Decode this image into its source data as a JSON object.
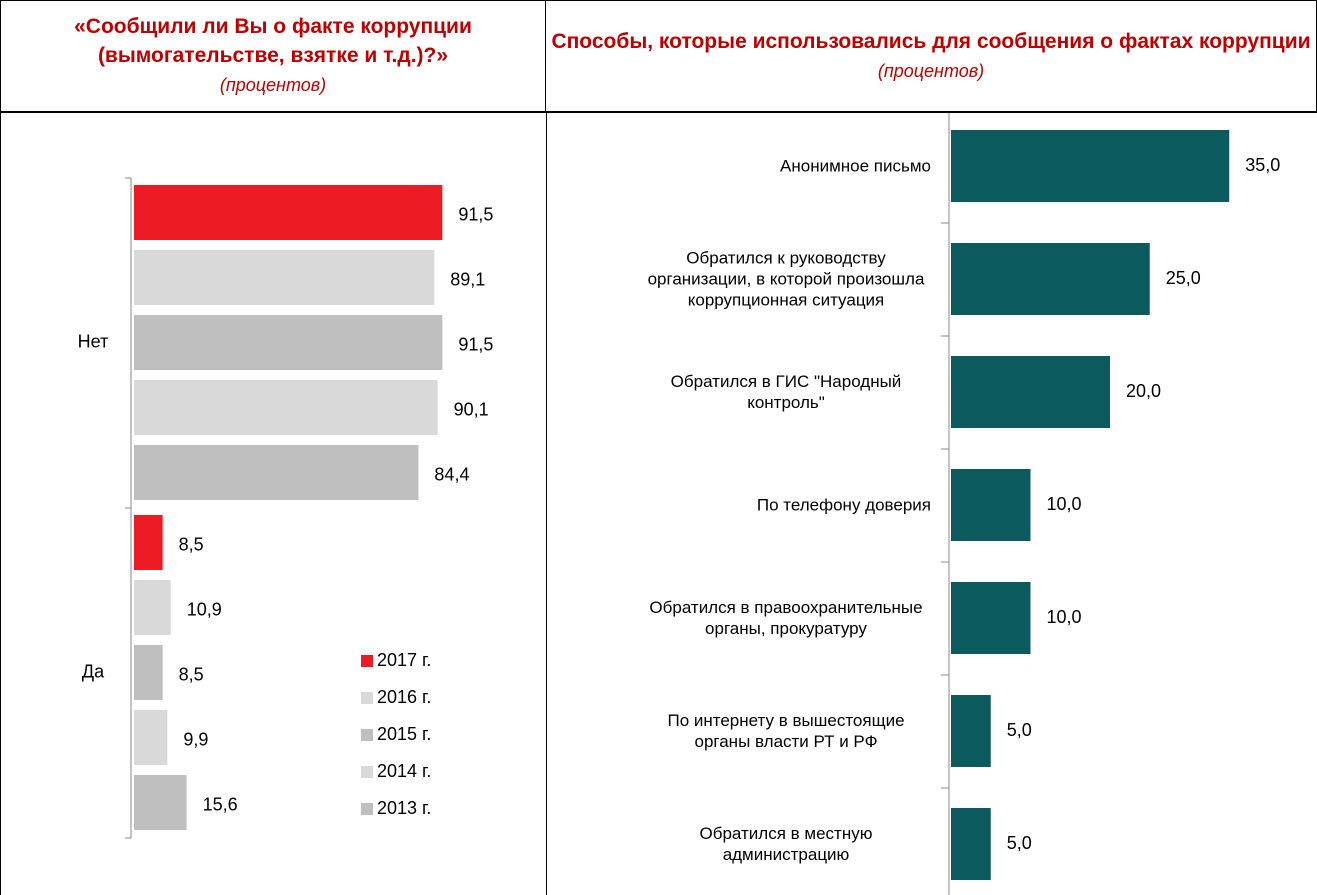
{
  "chart_data": [
    {
      "type": "hbar",
      "title": "«Сообщили ли Вы о факте коррупции (вымогательстве, взятке и т.д.)?»",
      "units": "(процентов)",
      "categories": [
        "Нет",
        "Да"
      ],
      "xlim": [
        0,
        100
      ],
      "legend": "bottom-right",
      "series": [
        {
          "name": "2017 г.",
          "color": "#ed1c24",
          "values": [
            91.5,
            8.5
          ],
          "value_labels": [
            "91,5",
            "8,5"
          ]
        },
        {
          "name": "2016 г.",
          "color": "#d9d9d9",
          "values": [
            89.1,
            10.9
          ],
          "value_labels": [
            "89,1",
            "10,9"
          ]
        },
        {
          "name": "2015 г.",
          "color": "#bfbfbf",
          "values": [
            91.5,
            8.5
          ],
          "value_labels": [
            "91,5",
            "8,5"
          ]
        },
        {
          "name": "2014 г.",
          "color": "#d9d9d9",
          "values": [
            90.1,
            9.9
          ],
          "value_labels": [
            "90,1",
            "9,9"
          ]
        },
        {
          "name": "2013 г.",
          "color": "#bfbfbf",
          "values": [
            84.4,
            15.6
          ],
          "value_labels": [
            "84,4",
            "15,6"
          ]
        }
      ]
    },
    {
      "type": "hbar",
      "title": "Способы, которые использовались для сообщения о фактах коррупции",
      "units": "(процентов)",
      "categories": [
        "Анонимное письмо",
        "Обратился к руководству организации, в которой произошла коррупционная ситуация",
        "Обратился в ГИС \"Народный контроль\"",
        "По телефону доверия",
        "Обратился в правоохранительные органы, прокуратуру",
        "По интернету в вышестоящие органы власти РТ и РФ",
        "Обратился в местную администрацию"
      ],
      "xlim": [
        0,
        40
      ],
      "color": "#0b5a5e",
      "values": [
        35.0,
        25.0,
        20.0,
        10.0,
        10.0,
        5.0,
        5.0
      ],
      "value_labels": [
        "35,0",
        "25,0",
        "20,0",
        "10,0",
        "10,0",
        "5,0",
        "5,0"
      ]
    }
  ]
}
